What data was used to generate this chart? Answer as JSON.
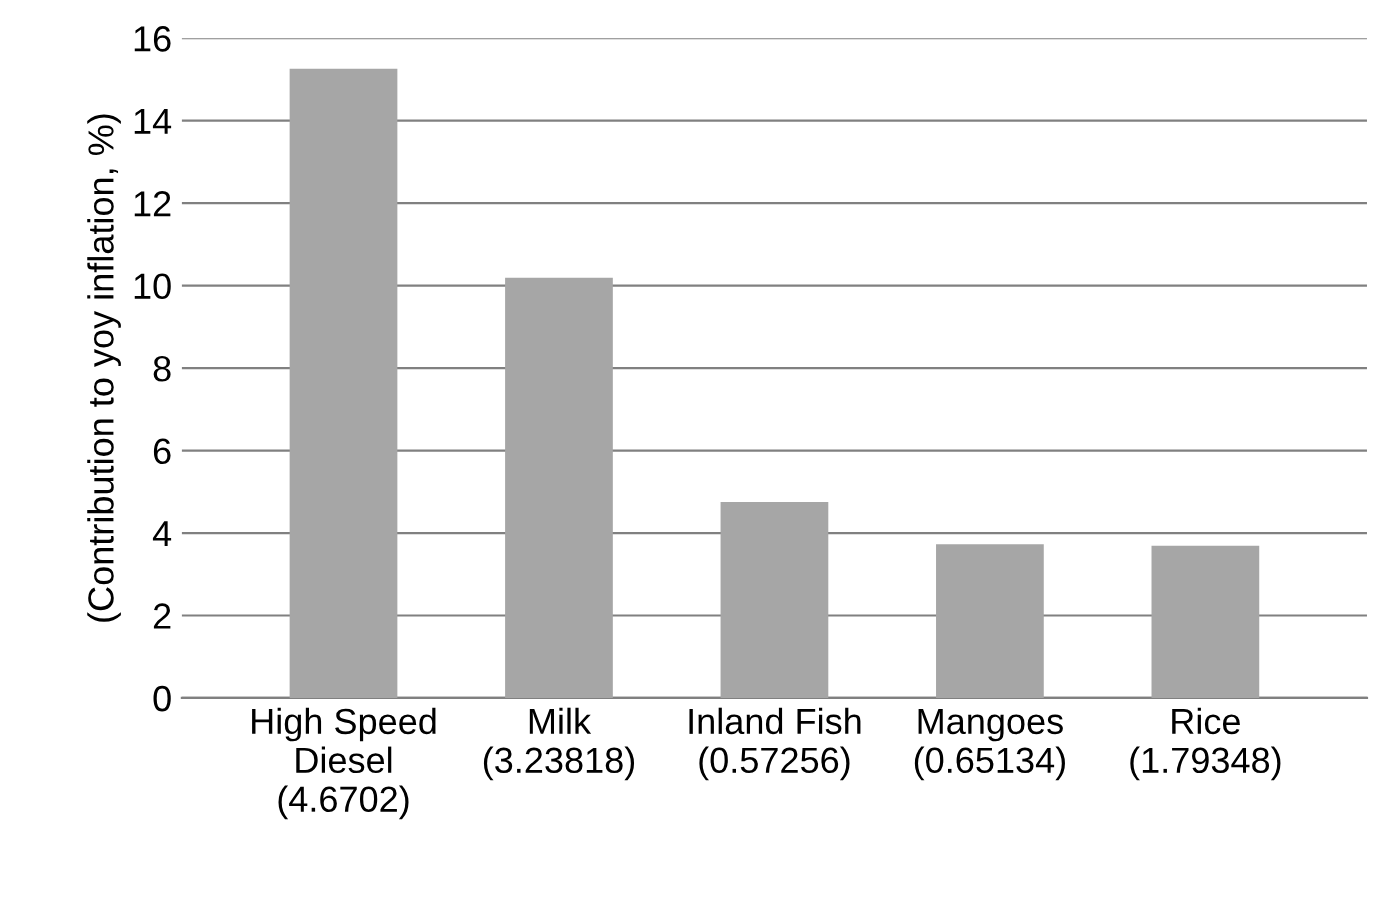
{
  "chart_data": {
    "type": "bar",
    "ylabel": "(Contribution to yoy inflation, %)",
    "categories": [
      "High Speed\nDiesel\n(4.6702)",
      "Milk\n(3.23818)",
      "Inland Fish\n(0.57256)",
      "Mangoes\n(0.65134)",
      "Rice\n(1.79348)"
    ],
    "values": [
      15.26,
      10.19,
      4.75,
      3.73,
      3.69
    ],
    "color": "#a6a6a6",
    "ylim": [
      0,
      16
    ],
    "yticks": [
      0,
      2,
      4,
      6,
      8,
      10,
      12,
      14,
      16
    ],
    "grid": "y"
  }
}
